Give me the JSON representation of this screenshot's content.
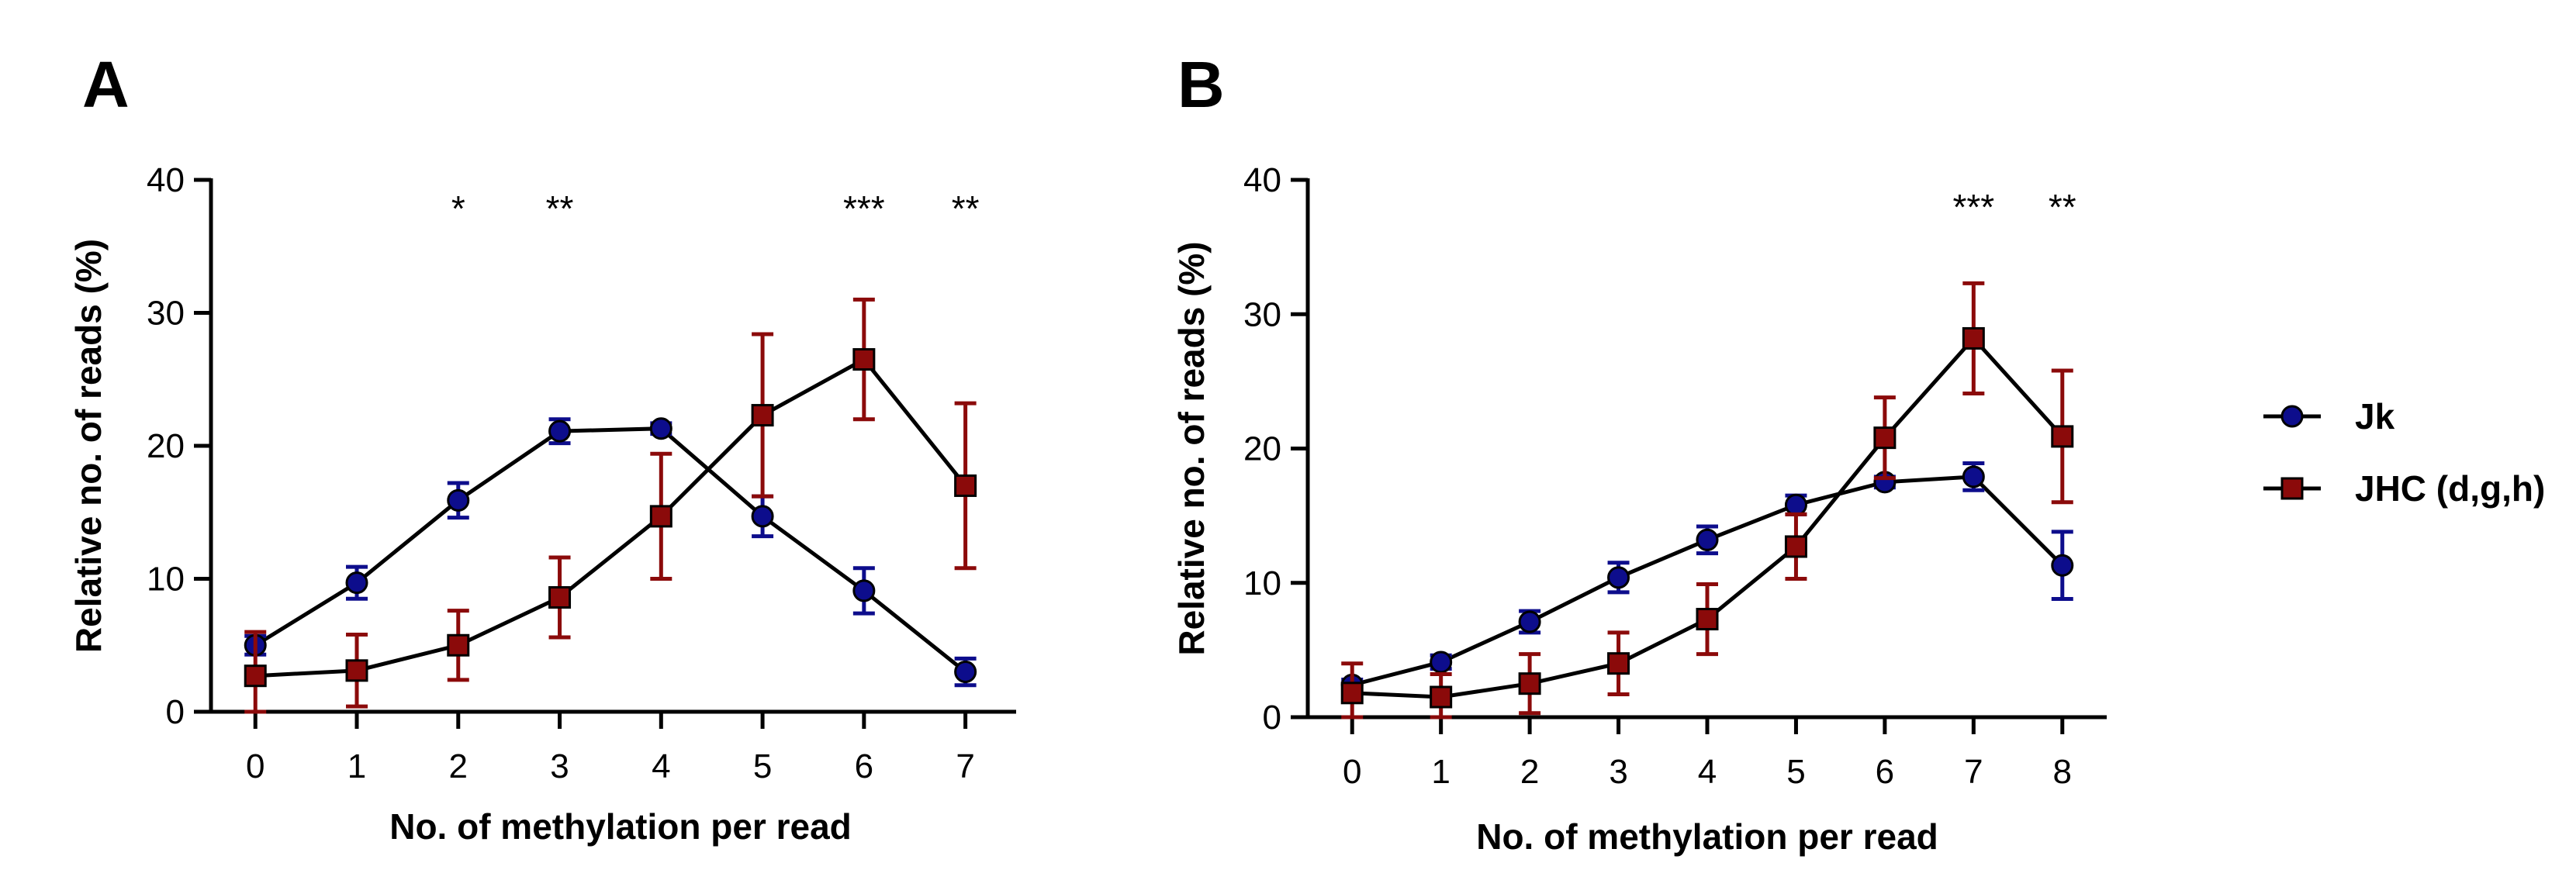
{
  "chart_data": [
    {
      "panel": "A",
      "type": "line",
      "xlabel": "No. of methylation per read",
      "ylabel": "Relative no. of reads (%)",
      "x": [
        0,
        1,
        2,
        3,
        4,
        5,
        6,
        7
      ],
      "xlim": [
        -0.3,
        7.5
      ],
      "ylim": [
        0,
        40
      ],
      "yticks": [
        0,
        10,
        20,
        30,
        40
      ],
      "series": [
        {
          "name": "Jk",
          "color": "#0d0d8c",
          "marker": "circle",
          "values": [
            5.0,
            9.7,
            15.9,
            21.1,
            21.3,
            14.7,
            9.1,
            3.0
          ],
          "errors": [
            0.7,
            1.2,
            1.3,
            0.9,
            0.4,
            1.5,
            1.7,
            1.0
          ]
        },
        {
          "name": "JHC (d,g,h)",
          "color": "#8b0a0a",
          "marker": "square",
          "values": [
            2.7,
            3.1,
            5.0,
            8.6,
            14.7,
            22.3,
            26.5,
            17.0
          ],
          "errors": [
            3.3,
            2.7,
            2.6,
            3.0,
            4.7,
            6.1,
            4.5,
            6.2
          ]
        }
      ],
      "annotations": [
        {
          "x": 2,
          "text": "*"
        },
        {
          "x": 3,
          "text": "**"
        },
        {
          "x": 6,
          "text": "***"
        },
        {
          "x": 7,
          "text": "**"
        }
      ]
    },
    {
      "panel": "B",
      "type": "line",
      "xlabel": "No. of methylation per read",
      "ylabel": "Relative no. of reads (%)",
      "x": [
        0,
        1,
        2,
        3,
        4,
        5,
        6,
        7,
        8
      ],
      "xlim": [
        -0.5,
        8.5
      ],
      "ylim": [
        0,
        40
      ],
      "yticks": [
        0,
        10,
        20,
        30,
        40
      ],
      "series": [
        {
          "name": "Jk",
          "color": "#0d0d8c",
          "marker": "circle",
          "values": [
            2.4,
            4.1,
            7.1,
            10.4,
            13.2,
            15.8,
            17.5,
            17.9,
            11.3
          ],
          "errors": [
            0.4,
            0.5,
            0.8,
            1.1,
            1.0,
            0.7,
            0.4,
            1.0,
            2.5
          ]
        },
        {
          "name": "JHC (d,g,h)",
          "color": "#8b0a0a",
          "marker": "square",
          "values": [
            1.8,
            1.5,
            2.5,
            4.0,
            7.3,
            12.7,
            20.8,
            28.2,
            20.9
          ],
          "errors": [
            2.2,
            1.7,
            2.2,
            2.3,
            2.6,
            2.4,
            3.0,
            4.1,
            4.9
          ]
        }
      ],
      "annotations": [
        {
          "x": 7,
          "text": "***"
        },
        {
          "x": 8,
          "text": "**"
        }
      ]
    }
  ],
  "legend": {
    "placement": "right",
    "items": [
      {
        "label": "Jk",
        "color": "#0d0d8c",
        "marker": "circle"
      },
      {
        "label": "JHC (d,g,h)",
        "color": "#8b0a0a",
        "marker": "square"
      }
    ]
  }
}
